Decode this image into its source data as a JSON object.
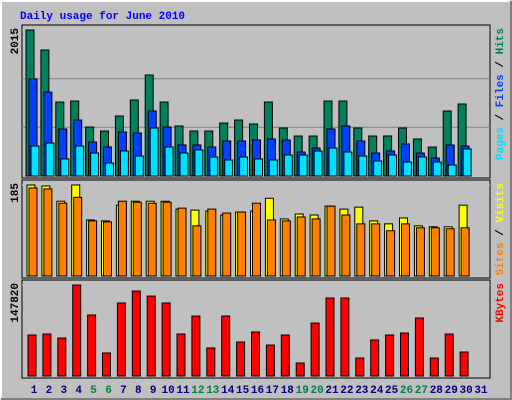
{
  "chart_data": [
    {
      "type": "bar",
      "title": "Daily usage for June 2010",
      "legend_separator": " / ",
      "ylim": [
        0,
        2015
      ],
      "yticks": [
        2015
      ],
      "gridlines": [
        672,
        1343
      ],
      "series": [
        {
          "name": "Hits",
          "color": "#00805c",
          "values": [
            2015,
            1739,
            1021,
            1035,
            676,
            621,
            828,
            1049,
            1394,
            1021,
            690,
            621,
            621,
            731,
            773,
            718,
            1021,
            662,
            552,
            552,
            1035,
            1035,
            662,
            552,
            552,
            662,
            511,
            400,
            897,
            994,
            0
          ]
        },
        {
          "name": "Files",
          "color": "#0040ff",
          "values": [
            1339,
            1159,
            649,
            773,
            469,
            400,
            607,
            593,
            897,
            676,
            428,
            428,
            400,
            483,
            483,
            497,
            511,
            497,
            331,
            386,
            649,
            690,
            483,
            317,
            345,
            442,
            317,
            248,
            428,
            414,
            0
          ]
        },
        {
          "name": "Pages",
          "color": "#00e0ff",
          "values": [
            414,
            455,
            235,
            414,
            317,
            179,
            345,
            276,
            662,
            400,
            317,
            359,
            262,
            221,
            262,
            235,
            221,
            290,
            290,
            345,
            386,
            331,
            276,
            207,
            290,
            193,
            262,
            193,
            152,
            373,
            0
          ]
        }
      ]
    },
    {
      "type": "bar",
      "legend_separator": " / ",
      "ylim": [
        0,
        185
      ],
      "yticks": [
        185
      ],
      "series": [
        {
          "name": "Visits",
          "color": "#ffff00",
          "values": [
            185,
            183,
            152,
            185,
            114,
            112,
            144,
            152,
            152,
            152,
            136,
            134,
            132,
            124,
            130,
            132,
            158,
            116,
            126,
            124,
            142,
            136,
            140,
            112,
            106,
            118,
            102,
            100,
            100,
            144,
            0
          ]
        },
        {
          "name": "Sites",
          "color": "#ff8000",
          "values": [
            179,
            177,
            148,
            160,
            112,
            110,
            152,
            150,
            148,
            150,
            138,
            102,
            136,
            128,
            130,
            148,
            114,
            112,
            120,
            116,
            142,
            124,
            106,
            106,
            92,
            106,
            98,
            98,
            96,
            98,
            0
          ]
        }
      ]
    },
    {
      "type": "bar",
      "ylim": [
        0,
        147820
      ],
      "yticks": [
        147820
      ],
      "categories": [
        "1",
        "2",
        "3",
        "4",
        "5",
        "6",
        "7",
        "8",
        "9",
        "10",
        "11",
        "12",
        "13",
        "14",
        "15",
        "16",
        "17",
        "18",
        "19",
        "20",
        "21",
        "22",
        "23",
        "24",
        "25",
        "26",
        "27",
        "28",
        "29",
        "30",
        "31"
      ],
      "category_colors": [
        "#000080",
        "#000080",
        "#000080",
        "#000080",
        "#008040",
        "#008040",
        "#000080",
        "#000080",
        "#000080",
        "#000080",
        "#000080",
        "#008040",
        "#008040",
        "#000080",
        "#000080",
        "#000080",
        "#000080",
        "#000080",
        "#008040",
        "#008040",
        "#000080",
        "#000080",
        "#000080",
        "#000080",
        "#000080",
        "#008040",
        "#008040",
        "#000080",
        "#000080",
        "#000080",
        "#000080"
      ],
      "series": [
        {
          "name": "KBytes",
          "color": "#ff0000",
          "values": [
            66600,
            68200,
            61700,
            147820,
            99100,
            37400,
            118600,
            138000,
            129900,
            118600,
            68200,
            97400,
            45500,
            97400,
            55200,
            71500,
            50300,
            66600,
            21100,
            86000,
            126700,
            126700,
            29200,
            58500,
            66600,
            69800,
            94200,
            29200,
            68200,
            39000,
            0
          ]
        }
      ]
    }
  ]
}
